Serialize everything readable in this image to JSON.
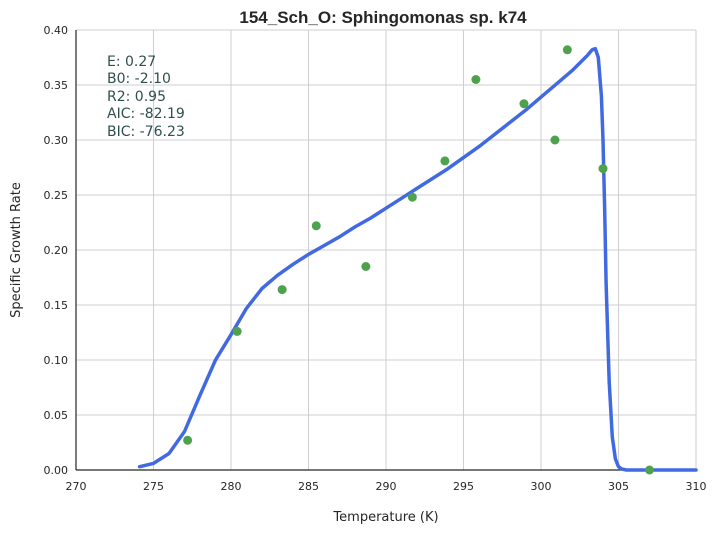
{
  "chart_data": {
    "type": "scatter",
    "title": "154_Sch_O: Sphingomonas sp. k74",
    "xlabel": "Temperature (K)",
    "ylabel": "Specific Growth Rate",
    "xlim": [
      270,
      310
    ],
    "ylim": [
      0.0,
      0.4
    ],
    "xticks": [
      270,
      275,
      280,
      285,
      290,
      295,
      300,
      305,
      310
    ],
    "yticks": [
      0.0,
      0.05,
      0.1,
      0.15,
      0.2,
      0.25,
      0.3,
      0.35,
      0.4
    ],
    "grid": true,
    "colors": {
      "points": "#4ea24e",
      "fit": "#4169e1",
      "grid": "#cfcfcf",
      "axis": "#262626",
      "stats": "#2f4f4f"
    },
    "series": [
      {
        "kind": "observed",
        "x": [
          277.2,
          280.4,
          283.3,
          285.5,
          288.7,
          291.7,
          293.8,
          295.8,
          298.9,
          300.9,
          301.7,
          304.0,
          307.0
        ],
        "y": [
          0.027,
          0.126,
          0.164,
          0.222,
          0.185,
          0.248,
          0.281,
          0.355,
          0.333,
          0.3,
          0.382,
          0.274,
          0.0
        ]
      },
      {
        "kind": "fitted",
        "x": [
          274.1,
          275.0,
          276.0,
          277.0,
          278.0,
          279.0,
          280.0,
          281.0,
          282.0,
          283.0,
          284.0,
          285.0,
          286.0,
          287.0,
          288.0,
          289.0,
          290.0,
          291.0,
          292.0,
          293.0,
          294.0,
          295.0,
          296.0,
          297.0,
          298.0,
          299.0,
          300.0,
          301.0,
          302.0,
          302.5,
          303.0,
          303.3,
          303.5,
          303.7,
          303.9,
          304.0,
          304.1,
          304.2,
          304.4,
          304.6,
          304.8,
          305.0,
          305.2,
          305.5,
          306.0,
          307.0,
          308.0,
          309.0,
          310.0
        ],
        "y": [
          0.003,
          0.006,
          0.015,
          0.035,
          0.068,
          0.1,
          0.123,
          0.147,
          0.165,
          0.177,
          0.187,
          0.196,
          0.204,
          0.212,
          0.221,
          0.229,
          0.238,
          0.247,
          0.256,
          0.265,
          0.274,
          0.284,
          0.294,
          0.305,
          0.316,
          0.327,
          0.339,
          0.351,
          0.363,
          0.37,
          0.377,
          0.382,
          0.383,
          0.375,
          0.34,
          0.3,
          0.24,
          0.17,
          0.08,
          0.03,
          0.01,
          0.003,
          0.001,
          0.0,
          0.0,
          0.0,
          0.0,
          0.0,
          0.0
        ]
      }
    ],
    "stats": [
      "E:  0.27",
      "B0:  -2.10",
      "R2:  0.95",
      "AIC: -82.19",
      "BIC: -76.23"
    ]
  }
}
